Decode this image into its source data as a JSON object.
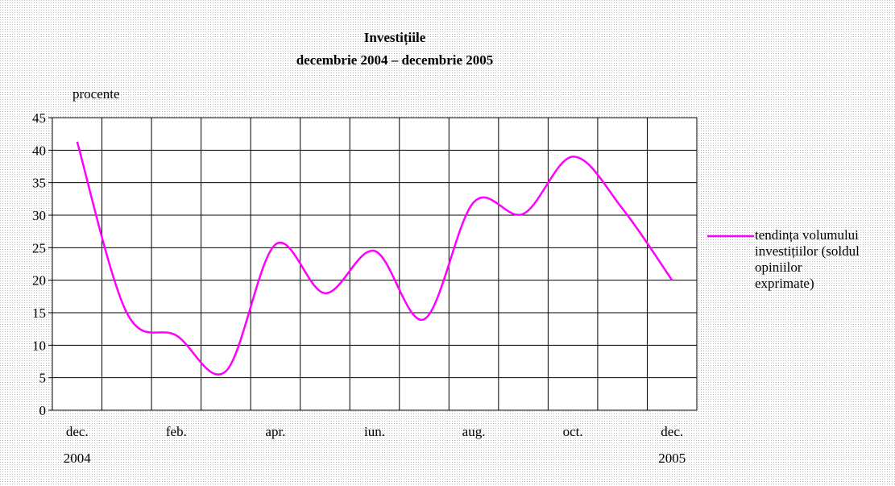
{
  "chart_data": {
    "type": "line",
    "title": "Investițiile",
    "subtitle": "decembrie 2004 – decembrie 2005",
    "y_label": "procente",
    "categories": [
      "dec. 2004",
      null,
      "feb.",
      null,
      "apr.",
      null,
      "iun.",
      null,
      "aug.",
      null,
      "oct.",
      null,
      "dec. 2005"
    ],
    "series": [
      {
        "name": "tendința volumului investițiilor (soldul opiniilor exprimate)",
        "color": "#ff00ff",
        "values": [
          41.3,
          15,
          11.5,
          6,
          25.5,
          18,
          24.5,
          14,
          32,
          30.2,
          39,
          31,
          20
        ]
      }
    ],
    "ylim": [
      0,
      45
    ],
    "yticks": [
      0,
      5,
      10,
      15,
      20,
      25,
      30,
      35,
      40,
      45
    ],
    "grid": true,
    "legend": "right"
  }
}
